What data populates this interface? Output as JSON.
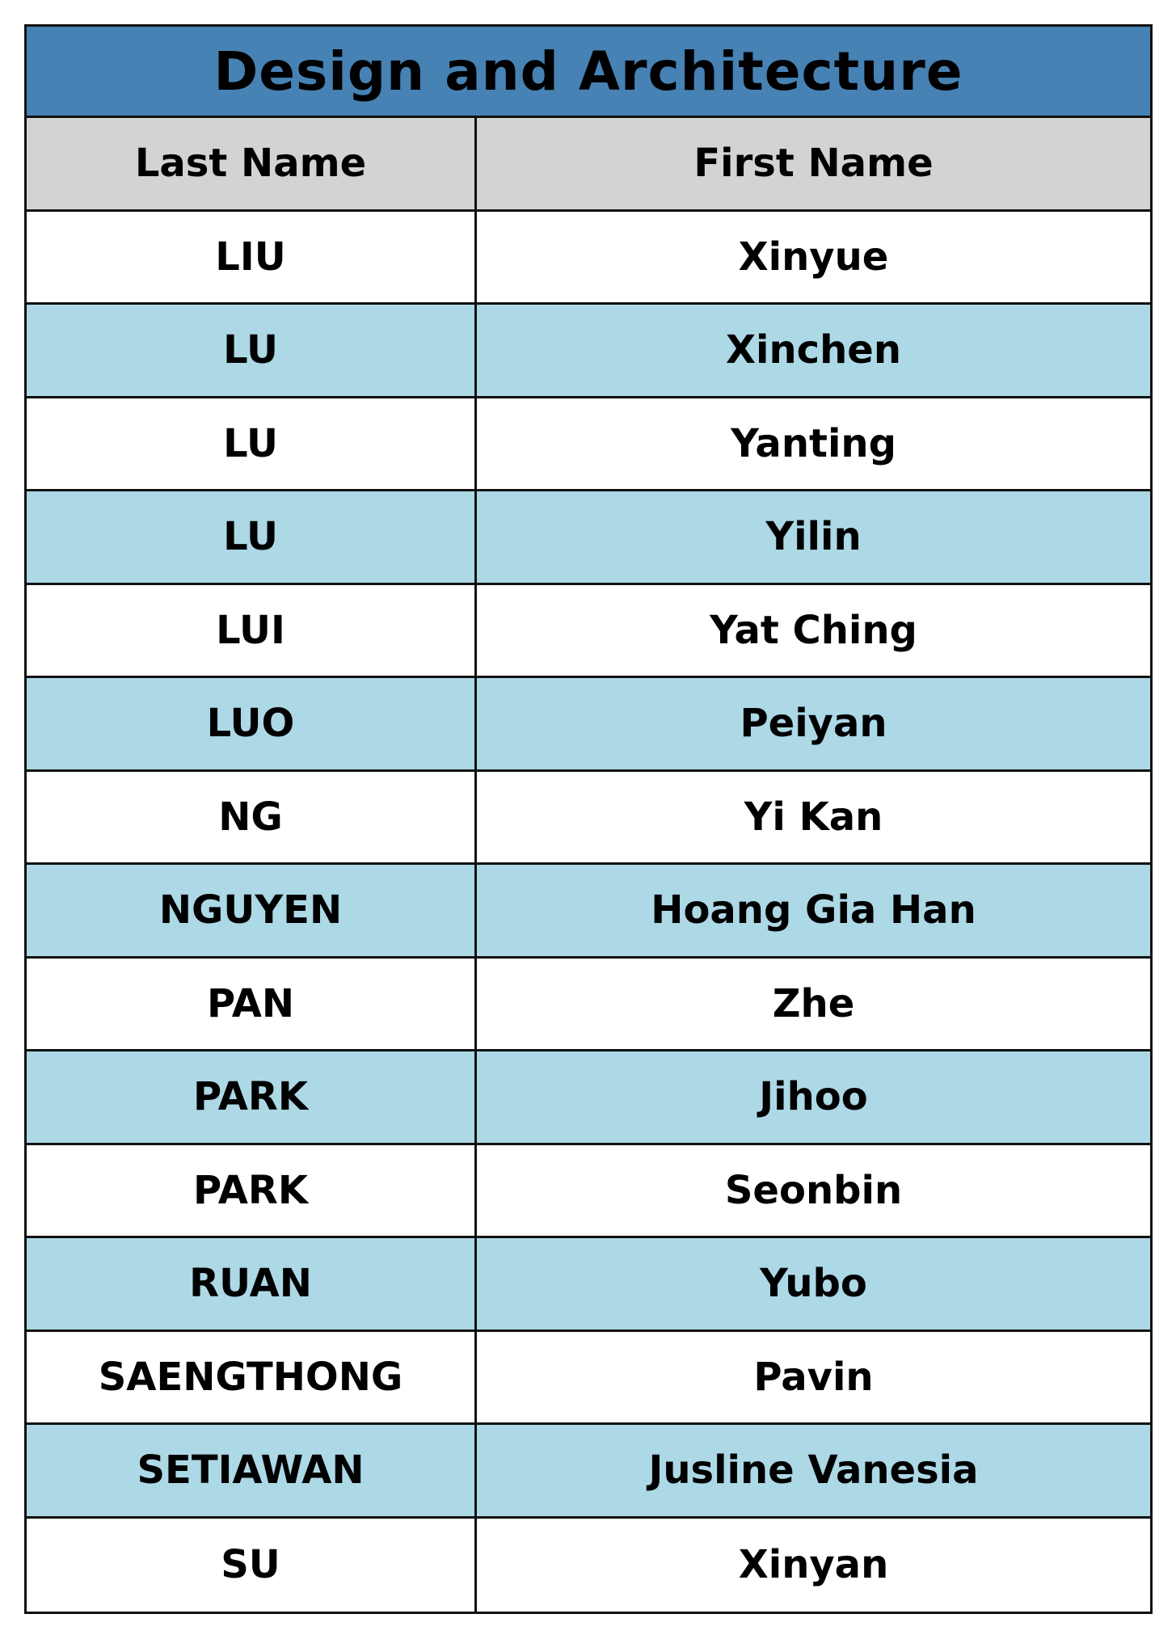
{
  "table": {
    "title": "Design and Architecture",
    "headers": {
      "last_name": "Last Name",
      "first_name": "First Name"
    },
    "rows": [
      {
        "last_name": "LIU",
        "first_name": "Xinyue"
      },
      {
        "last_name": "LU",
        "first_name": "Xinchen"
      },
      {
        "last_name": "LU",
        "first_name": "Yanting"
      },
      {
        "last_name": "LU",
        "first_name": "Yilin"
      },
      {
        "last_name": "LUI",
        "first_name": "Yat Ching"
      },
      {
        "last_name": "LUO",
        "first_name": "Peiyan"
      },
      {
        "last_name": "NG",
        "first_name": "Yi Kan"
      },
      {
        "last_name": "NGUYEN",
        "first_name": "Hoang Gia Han"
      },
      {
        "last_name": "PAN",
        "first_name": "Zhe"
      },
      {
        "last_name": "PARK",
        "first_name": "Jihoo"
      },
      {
        "last_name": "PARK",
        "first_name": "Seonbin"
      },
      {
        "last_name": "RUAN",
        "first_name": "Yubo"
      },
      {
        "last_name": "SAENGTHONG",
        "first_name": "Pavin"
      },
      {
        "last_name": "SETIAWAN",
        "first_name": "Jusline Vanesia"
      },
      {
        "last_name": "SU",
        "first_name": "Xinyan"
      }
    ]
  },
  "colors": {
    "title_background": "#4682b4",
    "header_background": "#d3d3d3",
    "row_alt_background": "#add8e6",
    "row_background": "#ffffff",
    "border": "#111111"
  }
}
